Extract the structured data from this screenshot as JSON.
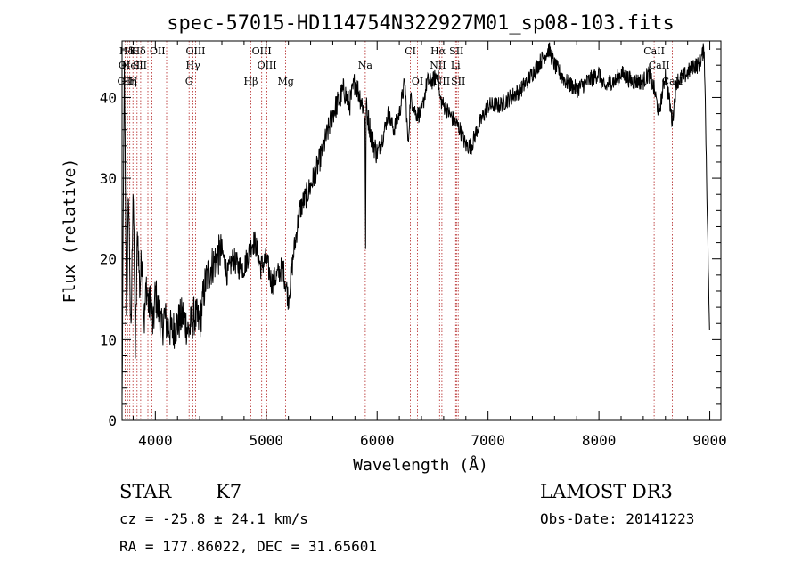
{
  "chart_data": {
    "type": "line",
    "title": "spec-57015-HD114754N322927M01_sp08-103.fits",
    "xlabel": "Wavelength (Å)",
    "ylabel": "Flux (relative)",
    "xlim": [
      3700,
      9100
    ],
    "ylim": [
      0,
      47
    ],
    "xticks": [
      4000,
      5000,
      6000,
      7000,
      8000,
      9000
    ],
    "yticks": [
      0,
      10,
      20,
      30,
      40
    ],
    "series": [
      {
        "name": "flux",
        "x": [
          3700,
          3720,
          3740,
          3760,
          3780,
          3800,
          3820,
          3840,
          3860,
          3880,
          3900,
          3920,
          3940,
          3960,
          3980,
          4000,
          4020,
          4040,
          4060,
          4080,
          4100,
          4150,
          4200,
          4250,
          4300,
          4350,
          4400,
          4450,
          4500,
          4550,
          4600,
          4650,
          4700,
          4750,
          4800,
          4850,
          4870,
          4900,
          4950,
          5000,
          5050,
          5100,
          5150,
          5200,
          5250,
          5300,
          5400,
          5500,
          5600,
          5700,
          5750,
          5800,
          5850,
          5890,
          5896,
          5900,
          5950,
          6000,
          6050,
          6100,
          6150,
          6200,
          6250,
          6280,
          6300,
          6350,
          6400,
          6450,
          6500,
          6550,
          6563,
          6600,
          6650,
          6700,
          6750,
          6800,
          6850,
          6900,
          7000,
          7100,
          7200,
          7300,
          7400,
          7450,
          7500,
          7550,
          7600,
          7650,
          7700,
          7800,
          7900,
          8000,
          8050,
          8100,
          8150,
          8200,
          8300,
          8400,
          8450,
          8498,
          8542,
          8600,
          8662,
          8700,
          8800,
          8850,
          8900,
          8950,
          9000
        ],
        "y": [
          2,
          44,
          13,
          28,
          9,
          30,
          8,
          24,
          16,
          21,
          12,
          17,
          14,
          15,
          11,
          16,
          14,
          13,
          11,
          13,
          12,
          11,
          12,
          13,
          11,
          13,
          12,
          17,
          19,
          20,
          21,
          18,
          20,
          19,
          19,
          21,
          22,
          22,
          19,
          20,
          17,
          18,
          19,
          15,
          21,
          26,
          29,
          33,
          38,
          41,
          39,
          42,
          40,
          38,
          20,
          39,
          35,
          33,
          35,
          38,
          36,
          38,
          42,
          34,
          40,
          38,
          38,
          42,
          42,
          43,
          40,
          39,
          38,
          37,
          36,
          34,
          34,
          36,
          39,
          39,
          40,
          41,
          43,
          44,
          45,
          46,
          44,
          43,
          42,
          41,
          42,
          43,
          41,
          42,
          42,
          43,
          42,
          42,
          43,
          41,
          38,
          43,
          37,
          42,
          43,
          44,
          44,
          46,
          9
        ]
      }
    ],
    "spectral_lines": [
      {
        "name": "Hδ",
        "wavelength": 3740,
        "row": 0
      },
      {
        "name": "K",
        "wavelength": 3800,
        "row": 0
      },
      {
        "name": "Hδ",
        "wavelength": 3850,
        "row": 0
      },
      {
        "name": "OII",
        "wavelength": 4020,
        "row": 0
      },
      {
        "name": "OIII",
        "wavelength": 4363,
        "row": 0
      },
      {
        "name": "OIII",
        "wavelength": 4959,
        "row": 0
      },
      {
        "name": "CI",
        "wavelength": 6300,
        "row": 0
      },
      {
        "name": "Hα",
        "wavelength": 6550,
        "row": 0
      },
      {
        "name": "SII",
        "wavelength": 6716,
        "row": 0
      },
      {
        "name": "CaII",
        "wavelength": 8498,
        "row": 0
      },
      {
        "name": "OI",
        "wavelength": 3720,
        "row": 1
      },
      {
        "name": "HeI",
        "wavelength": 3780,
        "row": 1
      },
      {
        "name": "SII",
        "wavelength": 3860,
        "row": 1
      },
      {
        "name": "Hγ",
        "wavelength": 4340,
        "row": 1
      },
      {
        "name": "OIII",
        "wavelength": 5007,
        "row": 1
      },
      {
        "name": "Na",
        "wavelength": 5893,
        "row": 1
      },
      {
        "name": "NII",
        "wavelength": 6548,
        "row": 1
      },
      {
        "name": "Li",
        "wavelength": 6708,
        "row": 1
      },
      {
        "name": "CaII",
        "wavelength": 8542,
        "row": 1
      },
      {
        "name": "OII",
        "wavelength": 3727,
        "row": 2
      },
      {
        "name": "Hη",
        "wavelength": 3770,
        "row": 2
      },
      {
        "name": "H",
        "wavelength": 3800,
        "row": 2
      },
      {
        "name": "G",
        "wavelength": 4304,
        "row": 2
      },
      {
        "name": "Hβ",
        "wavelength": 4861,
        "row": 2
      },
      {
        "name": "Mg",
        "wavelength": 5175,
        "row": 2
      },
      {
        "name": "OI",
        "wavelength": 6364,
        "row": 2
      },
      {
        "name": "NII",
        "wavelength": 6584,
        "row": 2
      },
      {
        "name": "SII",
        "wavelength": 6731,
        "row": 2
      },
      {
        "name": "CaII",
        "wavelength": 8662,
        "row": 2
      }
    ],
    "line_markers": [
      3727,
      3750,
      3770,
      3798,
      3835,
      3868,
      3889,
      3933,
      3968,
      4102,
      4304,
      4340,
      4363,
      4861,
      4959,
      5007,
      5175,
      5893,
      6300,
      6364,
      6548,
      6563,
      6584,
      6708,
      6716,
      6731,
      8498,
      8542,
      8662
    ]
  },
  "info": {
    "object_class": "STAR",
    "subclass": "K7",
    "survey": "LAMOST DR3",
    "cz": "cz = -25.8 ± 24.1 km/s",
    "obs_date": "Obs-Date: 20141223",
    "coords": "RA = 177.86022, DEC =  31.65601"
  }
}
